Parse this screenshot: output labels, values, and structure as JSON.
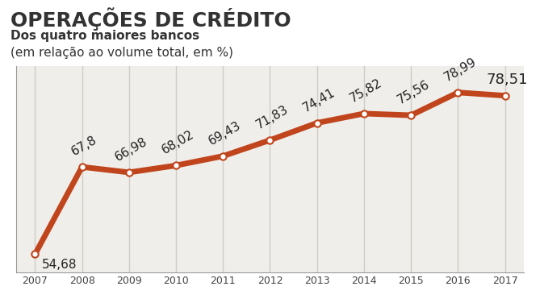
{
  "chart_data": {
    "type": "line",
    "title": "OPERAÇÕES DE CRÉDITO",
    "subtitle": "Dos quatro maiores bancos",
    "annotations": [
      "(em relação ao volume total, em %)"
    ],
    "categories": [
      "2007",
      "2008",
      "2009",
      "2010",
      "2011",
      "2012",
      "2013",
      "2014",
      "2015",
      "2016",
      "2017"
    ],
    "values": [
      54.68,
      67.8,
      66.98,
      68.02,
      69.43,
      71.83,
      74.41,
      75.82,
      75.56,
      78.99,
      78.51
    ],
    "value_labels": [
      "54,68",
      "67,8",
      "66,98",
      "68,02",
      "69,43",
      "71,83",
      "74,41",
      "75,82",
      "75,56",
      "78,99",
      "78,51"
    ],
    "data_labels": true,
    "color": "#c0451c",
    "marker": "o",
    "line_style": "solid",
    "ylim": [
      52,
      83
    ],
    "grid": true,
    "tick_labels": "x"
  }
}
